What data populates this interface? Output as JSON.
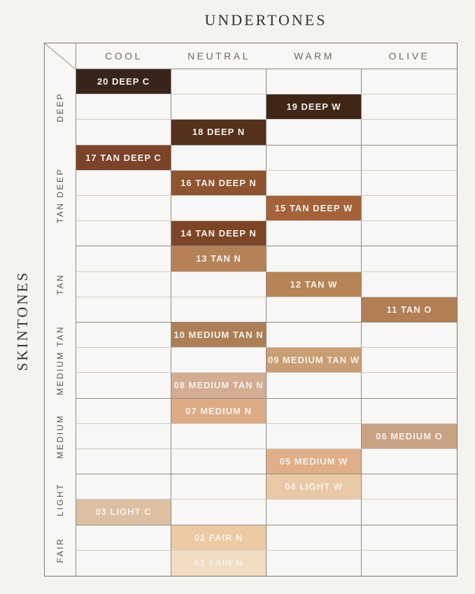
{
  "page": {
    "title": "UNDERTONES",
    "side_title": "SKINTONES"
  },
  "colors": {
    "background": "#f5f3f0",
    "cell_background": "#f8f7f5",
    "grid_line_light": "#cfccc7",
    "grid_line_dark": "#8f8c86",
    "outer_border": "#7d7a74",
    "title_text": "#36342f",
    "column_header_text": "#6b6863",
    "group_label_text": "#55534e",
    "swatch_text": "#f6f1ec"
  },
  "chart_data": {
    "type": "table",
    "title": "UNDERTONES",
    "xlabel": "UNDERTONES",
    "ylabel": "SKINTONES",
    "columns": [
      "COOL",
      "NEUTRAL",
      "WARM",
      "OLIVE"
    ],
    "groups": [
      {
        "label": "DEEP",
        "shades": [
          {
            "label": "20 DEEP C",
            "column": "COOL",
            "color": "#38251a"
          },
          {
            "label": "19 DEEP W",
            "column": "WARM",
            "color": "#3f2617"
          },
          {
            "label": "18 DEEP N",
            "column": "NEUTRAL",
            "color": "#54301d"
          }
        ]
      },
      {
        "label": "TAN DEEP",
        "shades": [
          {
            "label": "17 TAN DEEP C",
            "column": "COOL",
            "color": "#7b432a"
          },
          {
            "label": "16 TAN DEEP N",
            "column": "NEUTRAL",
            "color": "#8e5430"
          },
          {
            "label": "15 TAN DEEP W",
            "column": "WARM",
            "color": "#a4613a"
          },
          {
            "label": "14 TAN DEEP N",
            "column": "NEUTRAL",
            "color": "#7d4526"
          }
        ]
      },
      {
        "label": "TAN",
        "shades": [
          {
            "label": "13 TAN N",
            "column": "NEUTRAL",
            "color": "#b58257"
          },
          {
            "label": "12 TAN W",
            "column": "WARM",
            "color": "#b78457"
          },
          {
            "label": "11 TAN O",
            "column": "OLIVE",
            "color": "#b27e55"
          }
        ]
      },
      {
        "label": "MEDIUM TAN",
        "shades": [
          {
            "label": "10 MEDIUM TAN N",
            "column": "NEUTRAL",
            "color": "#ad7f56"
          },
          {
            "label": "09 MEDIUM TAN W",
            "column": "WARM",
            "color": "#c99e74"
          },
          {
            "label": "08 MEDIUM TAN N",
            "column": "NEUTRAL",
            "color": "#d3ac92"
          }
        ]
      },
      {
        "label": "MEDIUM",
        "shades": [
          {
            "label": "07 MEDIUM N",
            "column": "NEUTRAL",
            "color": "#ddac86"
          },
          {
            "label": "06 MEDIUM O",
            "column": "OLIVE",
            "color": "#c9a284"
          },
          {
            "label": "05 MEDIUM W",
            "column": "WARM",
            "color": "#e0ae87"
          }
        ]
      },
      {
        "label": "LIGHT",
        "shades": [
          {
            "label": "04 LIGHT W",
            "column": "WARM",
            "color": "#eac9a7"
          },
          {
            "label": "03 LIGHT C",
            "column": "COOL",
            "color": "#ddc0a3"
          }
        ]
      },
      {
        "label": "FAIR",
        "shades": [
          {
            "label": "02 FAIR N",
            "column": "NEUTRAL",
            "color": "#edcaa3"
          },
          {
            "label": "01 FAIR N",
            "column": "NEUTRAL",
            "color": "#f1ddc1"
          }
        ]
      }
    ]
  }
}
